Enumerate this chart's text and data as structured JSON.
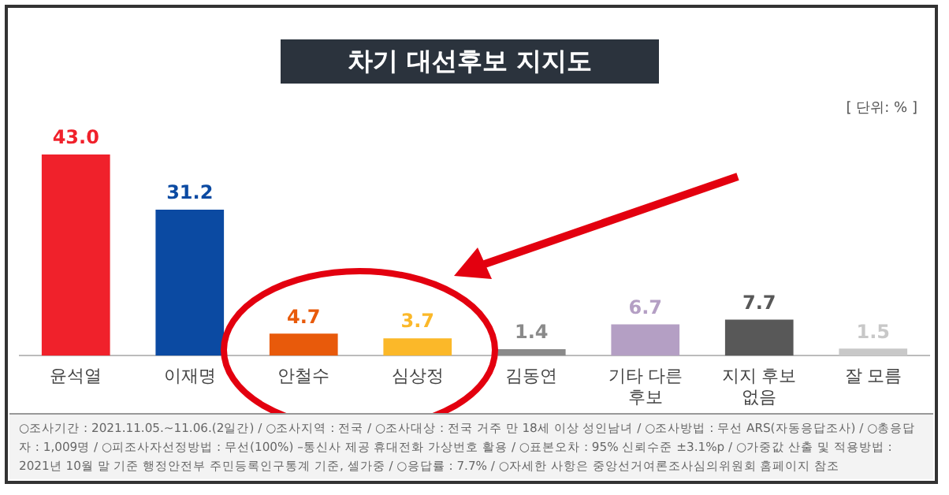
{
  "chart_data": {
    "type": "bar",
    "title": "차기 대선후보 지지도",
    "categories": [
      "윤석열",
      "이재명",
      "안철수",
      "심상정",
      "김동연",
      "기타 다른 후보",
      "지지 후보 없음",
      "잘 모름"
    ],
    "values": [
      43.0,
      31.2,
      4.7,
      3.7,
      1.4,
      6.7,
      7.7,
      1.5
    ],
    "colors": [
      "#f0212b",
      "#0b4aa2",
      "#e85a0b",
      "#fbb829",
      "#8a8a8a",
      "#b49fc4",
      "#585858",
      "#c8c8c8"
    ],
    "value_labels": [
      "43.0",
      "31.2",
      "4.7",
      "3.7",
      "1.4",
      "6.7",
      "7.7",
      "1.5"
    ],
    "grid": false,
    "legend": false,
    "annotations": [
      "[ 단위: % ]",
      "○조사기간 : 2021.11.05.~11.06.(2일간) / ○조사지역 : 전국 / ○조사대상 : 전국 거주 만 18세 이상 성인남녀 / ○조사방법 : 무선 ARS(자동응답조사) / ○총응답자 : 1,009명 / ○피조사자선정방법 : 무선(100%) –통신사 제공 휴대전화 가상번호 활용 / ○표본오차 : 95% 신뢰수준 ±3.1%p / ○가중값 산출 및 적용방법 : 2021년 10월 말 기준 행정안전부 주민등록인구통계 기준, 셀가중 / ○응답률 : 7.7% / ○자세한 사항은 중앙선거여론조사심의위원회 홈페이지 참조"
    ]
  }
}
